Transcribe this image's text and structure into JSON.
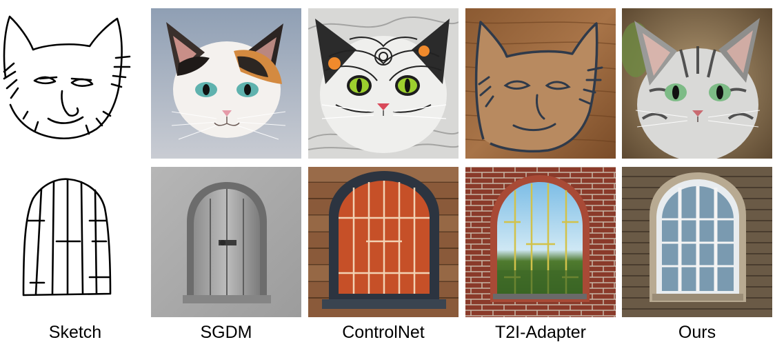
{
  "figure": {
    "columns": [
      {
        "label": "Sketch"
      },
      {
        "label": "SGDM"
      },
      {
        "label": "ControlNet"
      },
      {
        "label": "T2I-Adapter"
      },
      {
        "label": "Ours"
      }
    ],
    "rows": [
      {
        "subject": "cat"
      },
      {
        "subject": "arched window"
      }
    ]
  }
}
